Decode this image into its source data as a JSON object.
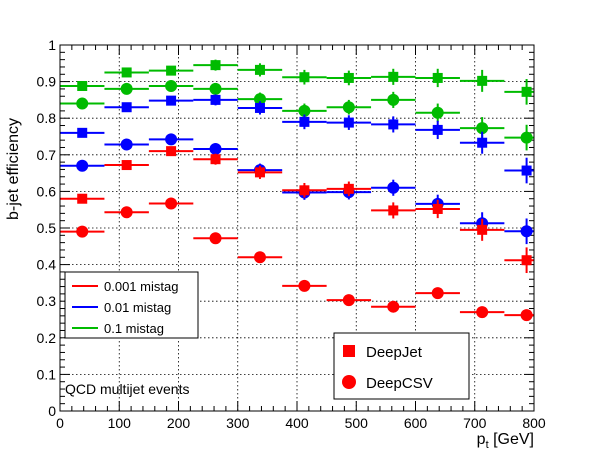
{
  "chart_data": {
    "type": "scatter",
    "xlabel_main": "p",
    "xlabel_sub": "t",
    "xlabel_unit": " [GeV]",
    "ylabel": "b-jet efficiency",
    "xlim": [
      0,
      800
    ],
    "ylim": [
      0,
      1
    ],
    "xticks": [
      0,
      100,
      200,
      300,
      400,
      500,
      600,
      700,
      800
    ],
    "yticks": [
      0,
      0.1,
      0.2,
      0.3,
      0.4,
      0.5,
      0.6,
      0.7,
      0.8,
      0.9,
      1
    ],
    "ytick_labels": [
      "0",
      "0.1",
      "0.2",
      "0.3",
      "0.4",
      "0.5",
      "0.6",
      "0.7",
      "0.8",
      "0.9",
      "1"
    ],
    "grid": true,
    "annotation": "QCD multijet events",
    "mistag_legend": [
      {
        "label": "0.001 mistag",
        "color": "#ff0000"
      },
      {
        "label": "0.01 mistag",
        "color": "#0000ff"
      },
      {
        "label": "0.1 mistag",
        "color": "#00bb00"
      }
    ],
    "marker_legend": [
      {
        "label": "DeepJet",
        "marker": "square"
      },
      {
        "label": "DeepCSV",
        "marker": "circle"
      }
    ],
    "bins": [
      {
        "center": 37.5,
        "lo": 0,
        "hi": 75
      },
      {
        "center": 112.5,
        "lo": 75,
        "hi": 150
      },
      {
        "center": 187.5,
        "lo": 150,
        "hi": 225
      },
      {
        "center": 262.5,
        "lo": 225,
        "hi": 300
      },
      {
        "center": 337.5,
        "lo": 300,
        "hi": 375
      },
      {
        "center": 412.5,
        "lo": 375,
        "hi": 450
      },
      {
        "center": 487.5,
        "lo": 450,
        "hi": 525
      },
      {
        "center": 562.5,
        "lo": 525,
        "hi": 600
      },
      {
        "center": 637.5,
        "lo": 600,
        "hi": 675
      },
      {
        "center": 712.5,
        "lo": 675,
        "hi": 750
      },
      {
        "center": 787.5,
        "lo": 750,
        "hi": 800
      }
    ],
    "series": [
      {
        "tagger": "DeepJet",
        "mistag": "0.1",
        "color": "#00bb00",
        "marker": "square",
        "values": [
          0.888,
          0.925,
          0.93,
          0.945,
          0.932,
          0.912,
          0.91,
          0.913,
          0.91,
          0.902,
          0.872
        ],
        "errors": [
          0.01,
          0.012,
          0.012,
          0.015,
          0.018,
          0.02,
          0.02,
          0.022,
          0.025,
          0.03,
          0.035
        ]
      },
      {
        "tagger": "DeepCSV",
        "mistag": "0.1",
        "color": "#00bb00",
        "marker": "circle",
        "values": [
          0.84,
          0.88,
          0.888,
          0.88,
          0.852,
          0.82,
          0.83,
          0.85,
          0.815,
          0.773,
          0.747
        ],
        "errors": [
          0.01,
          0.012,
          0.012,
          0.015,
          0.018,
          0.02,
          0.02,
          0.022,
          0.025,
          0.03,
          0.035
        ]
      },
      {
        "tagger": "DeepJet",
        "mistag": "0.01",
        "color": "#0000ff",
        "marker": "square",
        "values": [
          0.76,
          0.83,
          0.848,
          0.85,
          0.828,
          0.79,
          0.788,
          0.783,
          0.768,
          0.733,
          0.657
        ],
        "errors": [
          0.01,
          0.012,
          0.012,
          0.015,
          0.018,
          0.02,
          0.02,
          0.022,
          0.025,
          0.03,
          0.035
        ]
      },
      {
        "tagger": "DeepCSV",
        "mistag": "0.01",
        "color": "#0000ff",
        "marker": "circle",
        "values": [
          0.67,
          0.728,
          0.742,
          0.716,
          0.658,
          0.597,
          0.598,
          0.61,
          0.566,
          0.513,
          0.491
        ],
        "errors": [
          0.01,
          0.012,
          0.012,
          0.015,
          0.018,
          0.02,
          0.02,
          0.022,
          0.025,
          0.03,
          0.035
        ]
      },
      {
        "tagger": "DeepJet",
        "mistag": "0.001",
        "color": "#ff0000",
        "marker": "square",
        "values": [
          0.58,
          0.672,
          0.71,
          0.688,
          0.652,
          0.603,
          0.607,
          0.548,
          0.552,
          0.495,
          0.412
        ],
        "errors": [
          0.01,
          0.012,
          0.012,
          0.015,
          0.018,
          0.02,
          0.02,
          0.022,
          0.025,
          0.03,
          0.035
        ]
      },
      {
        "tagger": "DeepCSV",
        "mistag": "0.001",
        "color": "#ff0000",
        "marker": "circle",
        "values": [
          0.49,
          0.543,
          0.567,
          0.472,
          0.42,
          0.342,
          0.303,
          0.285,
          0.322,
          0.27,
          0.262
        ],
        "errors": [
          0.008,
          0.01,
          0.01,
          0.01,
          0.012,
          0.012,
          0.012,
          0.012,
          0.012,
          0.012,
          0.012
        ]
      }
    ]
  }
}
